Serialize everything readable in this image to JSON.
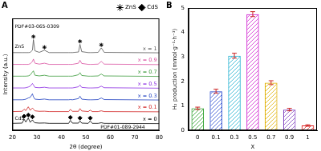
{
  "chart_data": [
    {
      "type": "line",
      "title": "A",
      "x_label": "2θ (degree)",
      "y_label": "Intensity (a.u.)",
      "x": [
        20,
        24,
        24.8,
        25.5,
        26.5,
        27.3,
        28.2,
        28.6,
        29.2,
        31,
        33.1,
        35,
        43,
        43.7,
        44.5,
        47,
        47.6,
        48.3,
        51,
        51.8,
        52.6,
        55,
        56.3,
        57.5,
        80
      ],
      "series": [
        {
          "name": "x = 1",
          "color": "#555555",
          "values": [
            6.6,
            6.6,
            6.6,
            6.6,
            6.6,
            6.62,
            6.8,
            7.7,
            6.75,
            6.62,
            6.8,
            6.6,
            6.6,
            6.6,
            6.6,
            6.65,
            7.3,
            6.68,
            6.6,
            6.6,
            6.6,
            6.62,
            7.0,
            6.62,
            6.58
          ]
        },
        {
          "name": "x = 0.9",
          "color": "#d94fa0",
          "values": [
            5.6,
            5.6,
            5.6,
            5.6,
            5.6,
            5.65,
            5.85,
            6.05,
            5.7,
            5.62,
            5.7,
            5.6,
            5.6,
            5.6,
            5.6,
            5.7,
            5.95,
            5.68,
            5.6,
            5.6,
            5.6,
            5.62,
            5.85,
            5.62,
            5.58
          ]
        },
        {
          "name": "x = 0.7",
          "color": "#3a9a3a",
          "values": [
            4.6,
            4.6,
            4.6,
            4.6,
            4.62,
            4.7,
            4.95,
            5.05,
            4.68,
            4.62,
            4.68,
            4.6,
            4.6,
            4.6,
            4.6,
            4.72,
            4.9,
            4.66,
            4.6,
            4.6,
            4.6,
            4.62,
            4.78,
            4.62,
            4.58
          ]
        },
        {
          "name": "x = 0.5",
          "color": "#8a2be2",
          "values": [
            3.6,
            3.6,
            3.6,
            3.62,
            3.68,
            3.75,
            3.98,
            3.85,
            3.65,
            3.62,
            3.66,
            3.6,
            3.6,
            3.6,
            3.6,
            3.7,
            3.85,
            3.65,
            3.6,
            3.6,
            3.6,
            3.62,
            3.75,
            3.62,
            3.58
          ]
        },
        {
          "name": "x = 0.3",
          "color": "#2040c0",
          "values": [
            2.6,
            2.6,
            2.62,
            2.65,
            2.75,
            2.8,
            3.1,
            2.85,
            2.65,
            2.62,
            2.66,
            2.6,
            2.6,
            2.62,
            2.6,
            2.7,
            2.9,
            2.65,
            2.6,
            2.6,
            2.6,
            2.62,
            2.75,
            2.62,
            2.58
          ]
        },
        {
          "name": "x = 0.1",
          "color": "#d02020",
          "values": [
            1.6,
            1.62,
            1.8,
            1.68,
            2.0,
            1.7,
            1.9,
            1.8,
            1.66,
            1.62,
            1.63,
            1.6,
            1.6,
            1.78,
            1.62,
            1.62,
            1.85,
            1.65,
            1.6,
            1.72,
            1.6,
            1.6,
            1.66,
            1.6,
            1.58
          ]
        },
        {
          "name": "x = 0",
          "color": "#000000",
          "values": [
            0.6,
            0.62,
            0.95,
            0.7,
            1.05,
            0.68,
            0.9,
            0.75,
            0.65,
            0.62,
            0.63,
            0.6,
            0.6,
            0.85,
            0.62,
            0.62,
            0.8,
            0.62,
            0.6,
            0.8,
            0.6,
            0.6,
            0.65,
            0.6,
            0.58
          ]
        },
        {
          "name": "ZnS",
          "type": "scatter",
          "marker": "star",
          "color": "#000000",
          "x": [
            28.6,
            33.1,
            47.6,
            56.3
          ],
          "values": [
            7.95,
            7.05,
            7.55,
            7.25
          ]
        },
        {
          "name": "CdS",
          "type": "scatter",
          "marker": "diamond",
          "color": "#000000",
          "x": [
            24.8,
            26.5,
            28.2,
            43.7,
            47.6,
            51.8
          ],
          "values": [
            1.2,
            1.3,
            1.15,
            1.1,
            1.05,
            1.05
          ]
        }
      ],
      "annotations": [
        {
          "text": "PDF#03-065-0309",
          "x": 21,
          "y": 8.8
        },
        {
          "text": "ZnS",
          "x": 21,
          "y": 7.1
        },
        {
          "text": "CdS",
          "x": 21,
          "y": 1.0
        },
        {
          "text": "PDF#01-089-2944",
          "x": 56,
          "y": 0.25
        }
      ],
      "xlim": [
        20,
        80
      ],
      "xticks": [
        20,
        30,
        40,
        50,
        60,
        70,
        80
      ],
      "ylim": [
        0,
        9.5
      ],
      "yticks": [],
      "tick_labels": "x",
      "grid": false,
      "legend": "upper right"
    },
    {
      "type": "bar",
      "title": "B",
      "x_label": "X",
      "y_label": "H₂ production (mmol·g⁻¹·h⁻¹)",
      "categories": [
        "0",
        "0.1",
        "0.3",
        "0.5",
        "0.7",
        "0.9",
        "1"
      ],
      "values": [
        0.9,
        1.6,
        3.05,
        4.75,
        1.95,
        0.85,
        0.2
      ],
      "errors": [
        0.05,
        0.08,
        0.1,
        0.1,
        0.08,
        0.05,
        0.03
      ],
      "colors": [
        "#2ca02c",
        "#3050d0",
        "#20b0d0",
        "#d020d0",
        "#e0b000",
        "#8040c0",
        "#e02020"
      ],
      "ylim": [
        0,
        5
      ],
      "yticks": [
        0,
        1,
        2,
        3,
        4,
        5
      ],
      "grid": false
    }
  ]
}
